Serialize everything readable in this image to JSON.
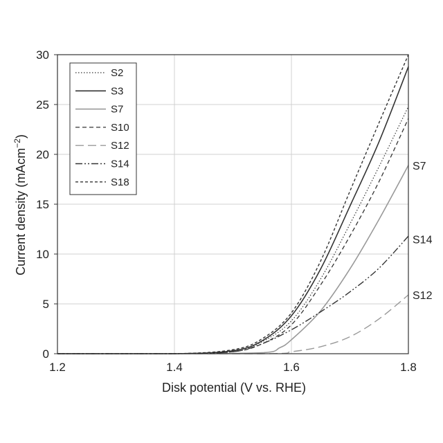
{
  "chart_data": {
    "type": "line",
    "xlabel": "Disk potential (V vs. RHE)",
    "ylabel": "Current density (mAcm",
    "ylabel_sup": "−2",
    "ylabel_close": ")",
    "xlim": [
      1.2,
      1.8
    ],
    "ylim": [
      0,
      30
    ],
    "x_ticks": [
      "1.2",
      "1.4",
      "1.6",
      "1.8"
    ],
    "y_ticks": [
      "0",
      "5",
      "10",
      "15",
      "20",
      "25",
      "30"
    ],
    "grid": true,
    "legend_position": "top-left",
    "series": [
      {
        "name": "S2",
        "color": "#333333",
        "dash": "1.5,2.5",
        "width": 1.2,
        "x": [
          1.2,
          1.4,
          1.5,
          1.55,
          1.6,
          1.65,
          1.7,
          1.75,
          1.8
        ],
        "y": [
          0,
          0,
          0.3,
          1.2,
          3.3,
          7.5,
          13.0,
          18.8,
          24.8
        ]
      },
      {
        "name": "S3",
        "color": "#333333",
        "dash": "",
        "width": 1.6,
        "x": [
          1.2,
          1.4,
          1.5,
          1.55,
          1.6,
          1.65,
          1.7,
          1.75,
          1.8
        ],
        "y": [
          0,
          0,
          0.3,
          1.3,
          3.8,
          8.5,
          14.8,
          21.3,
          28.8
        ]
      },
      {
        "name": "S7",
        "color": "#999999",
        "dash": "",
        "width": 1.6,
        "x": [
          1.2,
          1.4,
          1.55,
          1.58,
          1.6,
          1.65,
          1.7,
          1.75,
          1.8
        ],
        "y": [
          0,
          0,
          0.1,
          0.6,
          1.4,
          4.3,
          8.5,
          13.5,
          18.9
        ]
      },
      {
        "name": "S10",
        "color": "#333333",
        "dash": "6,4",
        "width": 1.3,
        "x": [
          1.2,
          1.4,
          1.5,
          1.55,
          1.6,
          1.65,
          1.7,
          1.75,
          1.8
        ],
        "y": [
          0,
          0,
          0.2,
          1.0,
          2.9,
          6.9,
          11.8,
          17.3,
          23.6
        ]
      },
      {
        "name": "S12",
        "color": "#999999",
        "dash": "12,6",
        "width": 1.4,
        "x": [
          1.2,
          1.55,
          1.6,
          1.65,
          1.7,
          1.75,
          1.8
        ],
        "y": [
          0,
          0,
          0.2,
          0.7,
          1.7,
          3.5,
          5.9
        ]
      },
      {
        "name": "S14",
        "color": "#333333",
        "dash": "10,3,2,3,2,3",
        "width": 1.4,
        "x": [
          1.2,
          1.4,
          1.5,
          1.55,
          1.6,
          1.65,
          1.7,
          1.75,
          1.8
        ],
        "y": [
          0,
          0,
          0.2,
          1.0,
          2.4,
          4.2,
          6.2,
          8.6,
          11.8
        ]
      },
      {
        "name": "S18",
        "color": "#333333",
        "dash": "4,3",
        "width": 1.4,
        "x": [
          1.2,
          1.4,
          1.5,
          1.55,
          1.6,
          1.65,
          1.7,
          1.75,
          1.8
        ],
        "y": [
          0,
          0,
          0.4,
          1.5,
          4.1,
          9.3,
          16.3,
          23.2,
          30.0
        ]
      }
    ],
    "end_labels": [
      {
        "text": "S7",
        "y": 18.9
      },
      {
        "text": "S14",
        "y": 11.5
      },
      {
        "text": "S12",
        "y": 5.9
      }
    ]
  }
}
